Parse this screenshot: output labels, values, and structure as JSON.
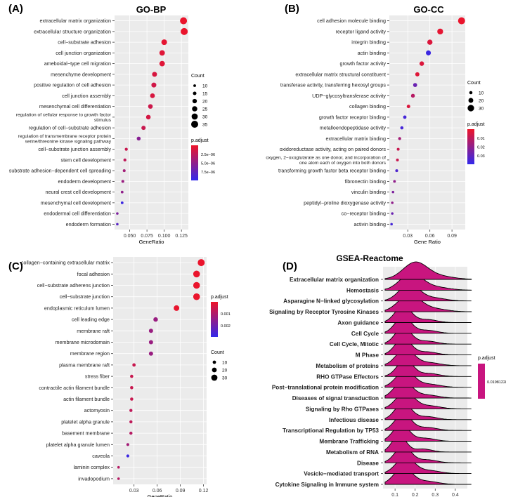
{
  "chart_data": [
    {
      "panel_label": "(A)",
      "title": "GO-BP",
      "type": "scatter",
      "xlabel": "GeneRatio",
      "xticks": [
        0.05,
        0.075,
        0.1,
        0.125
      ],
      "xtick_labels": [
        "0.050",
        "0.075",
        "0.100",
        "0.125"
      ],
      "xlim": [
        0.028,
        0.135
      ],
      "categories": [
        "extracellular matrix organization",
        "extracellular structure organization",
        "cell−substrate adhesion",
        "cell junction organization",
        "ameboidal−type cell migration",
        "mesenchyme development",
        "positive regulation of cell adhesion",
        "cell junction assembly",
        "mesenchymal cell differentiation",
        "regulation of cellular response to growth factor stimulus",
        "regulation of cell−substrate adhesion",
        "regulation of transmembrane receptor protein serine/threonine kinase signaling pathway",
        "cell−substrate junction assembly",
        "stem cell development",
        "substrate adhesion−dependent cell spreading",
        "endoderm development",
        "neural crest cell development",
        "mesenchymal cell development",
        "endodermal cell differentiation",
        "endoderm formation"
      ],
      "gene_ratio": [
        0.128,
        0.129,
        0.1,
        0.097,
        0.097,
        0.086,
        0.085,
        0.083,
        0.08,
        0.077,
        0.07,
        0.063,
        0.045,
        0.043,
        0.042,
        0.04,
        0.039,
        0.039,
        0.032,
        0.032
      ],
      "count": [
        35,
        35,
        27,
        26,
        26,
        23,
        23,
        22,
        21,
        21,
        19,
        17,
        12,
        12,
        11,
        11,
        10,
        10,
        9,
        9
      ],
      "p_adjust_norm": [
        0.02,
        0.02,
        0.05,
        0.08,
        0.08,
        0.12,
        0.16,
        0.12,
        0.18,
        0.14,
        0.2,
        0.55,
        0.2,
        0.25,
        0.4,
        0.45,
        0.5,
        0.95,
        0.6,
        0.8
      ],
      "legend": {
        "size_title": "Count",
        "size_levels": [
          10,
          15,
          20,
          25,
          30,
          35
        ],
        "color_title": "p.adjust",
        "color_tick_labels": [
          "2.5e−06",
          "5.0e−06",
          "7.5e−06"
        ]
      }
    },
    {
      "panel_label": "(B)",
      "title": "GO-CC",
      "type": "scatter",
      "xlabel": "Gene Ratio",
      "xticks": [
        0.03,
        0.06,
        0.09
      ],
      "xtick_labels": [
        "0.03",
        "0.06",
        "0.09"
      ],
      "xlim": [
        0.005,
        0.108
      ],
      "categories": [
        "cell adhesion molecule binding",
        "receptor ligand activity",
        "integrin binding",
        "actin binding",
        "growth factor activity",
        "extracellular matrix structural constituent",
        "transferase activity, transferring hexosyl groups",
        "UDP−glycosyltransferase activity",
        "collagen binding",
        "growth factor receptor binding",
        "metalloendopeptidase activity",
        "extracellular matrix binding",
        "oxidoreductase activity, acting on paired donors",
        "oxygen, 2−oxoglutarate as one donor, and incorporation of one atom each of oxygen into both donors",
        "transforming growth factor beta receptor binding",
        "fibronectin binding",
        "vinculin binding",
        "peptidyl−proline dioxygenase activity",
        "co−receptor binding",
        "activin binding"
      ],
      "gene_ratio": [
        0.103,
        0.074,
        0.06,
        0.058,
        0.049,
        0.043,
        0.04,
        0.037,
        0.031,
        0.026,
        0.022,
        0.019,
        0.017,
        0.016,
        0.015,
        0.012,
        0.01,
        0.009,
        0.009,
        0.008
      ],
      "count": [
        33,
        26,
        22,
        21,
        18,
        16,
        15,
        14,
        12,
        11,
        10,
        9,
        8,
        8,
        8,
        7,
        6,
        6,
        6,
        6
      ],
      "p_adjust_norm": [
        0.02,
        0.05,
        0.1,
        0.95,
        0.1,
        0.08,
        0.7,
        0.3,
        0.1,
        0.9,
        0.9,
        0.4,
        0.2,
        0.2,
        0.85,
        0.5,
        0.6,
        0.5,
        0.7,
        0.9
      ],
      "legend": {
        "size_title": "Count",
        "size_levels": [
          10,
          20,
          30
        ],
        "color_title": "p.adjust",
        "color_tick_labels": [
          "0.01",
          "0.02",
          "0.03"
        ]
      }
    },
    {
      "panel_label": "(C)",
      "title": "GO-MF",
      "type": "scatter",
      "xlabel": "GeneRatio",
      "xticks": [
        0.03,
        0.06,
        0.09,
        0.12
      ],
      "xtick_labels": [
        "0.03",
        "0.06",
        "0.09",
        "0.12"
      ],
      "xlim": [
        0.003,
        0.124
      ],
      "categories": [
        "collagen−containing extracellular matrix",
        "focal adhesion",
        "cell−substrate adherens junction",
        "cell−substrate junction",
        "endoplasmic reticulum lumen",
        "cell leading edge",
        "membrane raft",
        "membrane microdomain",
        "membrane region",
        "plasma membrane raft",
        "stress fiber",
        "contractile actin filament bundle",
        "actin filament bundle",
        "actomyosin",
        "platelet alpha granule",
        "basement membrane",
        "platelet alpha granule lumen",
        "caveola",
        "laminin complex",
        "invadopodium"
      ],
      "gene_ratio": [
        0.117,
        0.111,
        0.111,
        0.111,
        0.085,
        0.058,
        0.052,
        0.052,
        0.052,
        0.03,
        0.027,
        0.027,
        0.027,
        0.026,
        0.026,
        0.026,
        0.022,
        0.022,
        0.01,
        0.01
      ],
      "count": [
        36,
        34,
        34,
        34,
        26,
        18,
        16,
        16,
        16,
        10,
        9,
        9,
        9,
        8,
        8,
        8,
        7,
        7,
        4,
        4
      ],
      "p_adjust_norm": [
        0.02,
        0.02,
        0.02,
        0.02,
        0.03,
        0.45,
        0.45,
        0.45,
        0.45,
        0.2,
        0.2,
        0.2,
        0.2,
        0.25,
        0.25,
        0.3,
        0.4,
        0.95,
        0.3,
        0.3
      ],
      "legend": {
        "color_title": "p.adjust",
        "color_tick_labels": [
          "0.001",
          "0.002"
        ],
        "size_title": "Count",
        "size_levels": [
          10,
          20,
          30
        ]
      }
    },
    {
      "panel_label": "(D)",
      "title": "GSEA-Reactome",
      "type": "area",
      "subtype": "ridgeline",
      "xticks": [
        0.1,
        0.2,
        0.3,
        0.4
      ],
      "xtick_labels": [
        "0.1",
        "0.2",
        "0.3",
        "0.4"
      ],
      "xlim": [
        0.04,
        0.46
      ],
      "categories": [
        "Extracellular matrix organization",
        "Hemostasis",
        "Asparagine N−linked glycosylation",
        "Signaling by Receptor Tyrosine Kinases",
        "Axon guidance",
        "Cell Cycle",
        "Cell Cycle, Mitotic",
        "M Phase",
        "Metabolism of proteins",
        "RHO GTPase Effectors",
        "Post−translational protein modification",
        "Diseases of signal transduction",
        "Signaling by Rho GTPases",
        "Infectious disease",
        "Transcriptional Regulation by TP53",
        "Membrane Trafficking",
        "Metabolism of RNA",
        "Disease",
        "Vesicle−mediated transport",
        "Cytokine Signaling in Immune system"
      ],
      "peak": [
        0.2,
        0.18,
        0.17,
        0.17,
        0.14,
        0.14,
        0.14,
        0.14,
        0.15,
        0.15,
        0.15,
        0.14,
        0.15,
        0.14,
        0.14,
        0.13,
        0.12,
        0.14,
        0.15,
        0.14
      ],
      "spread": [
        0.06,
        0.055,
        0.05,
        0.055,
        0.04,
        0.04,
        0.04,
        0.04,
        0.045,
        0.04,
        0.045,
        0.045,
        0.045,
        0.04,
        0.04,
        0.04,
        0.035,
        0.04,
        0.045,
        0.045
      ],
      "legend": {
        "color_title": "p.adjust",
        "color_tick_labels": [
          "0.01981228"
        ]
      }
    }
  ]
}
